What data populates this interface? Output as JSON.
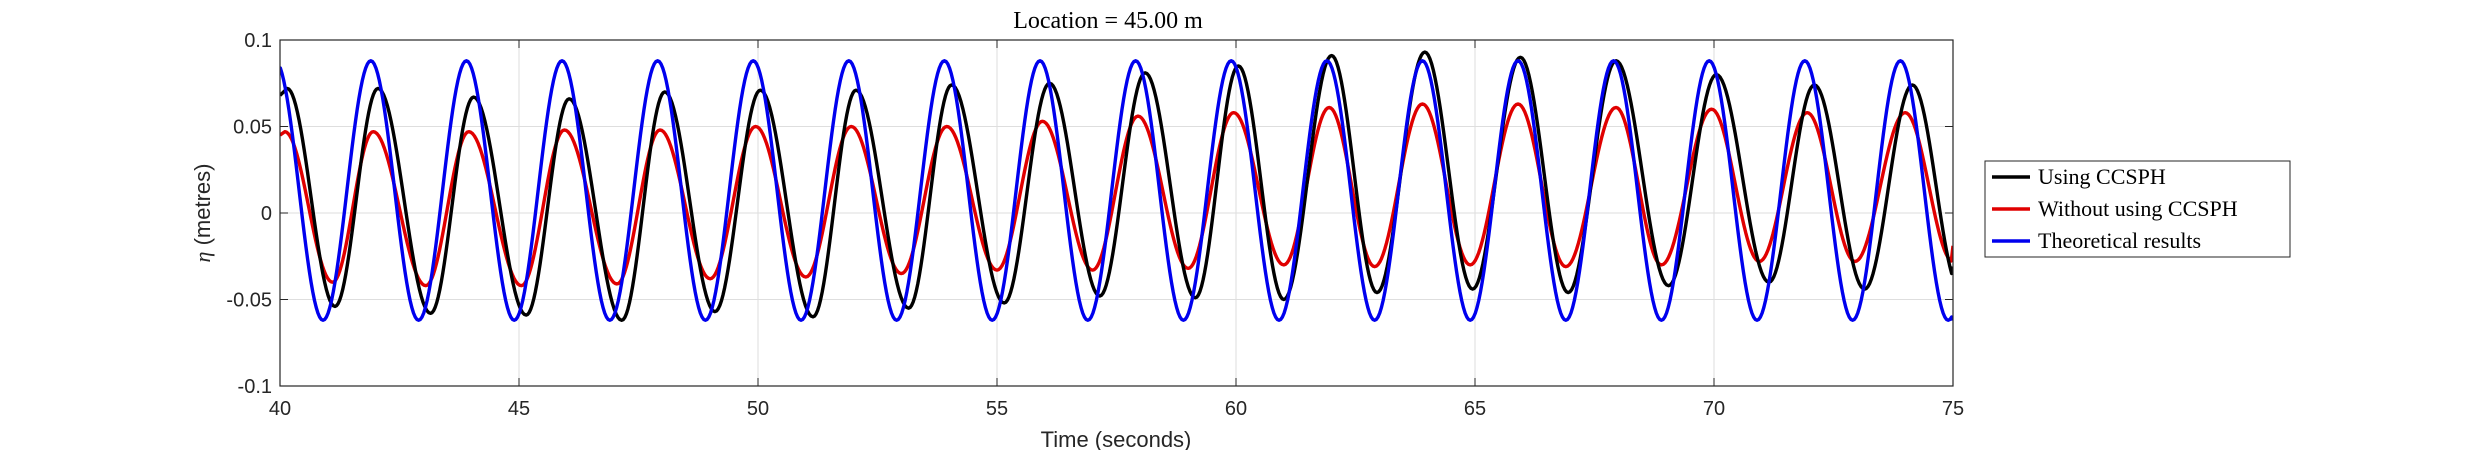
{
  "chart_data": {
    "type": "line",
    "title": "Location = 45.00 m",
    "xlabel": "Time (seconds)",
    "ylabel_symbol": "η",
    "ylabel_rest": " (metres)",
    "xlim": [
      40,
      75
    ],
    "ylim": [
      -0.1,
      0.1
    ],
    "xticks": [
      40,
      45,
      50,
      55,
      60,
      65,
      70,
      75
    ],
    "xtick_labels": [
      "40",
      "45",
      "50",
      "55",
      "60",
      "65",
      "70",
      "75"
    ],
    "yticks": [
      -0.1,
      -0.05,
      0,
      0.05,
      0.1
    ],
    "ytick_labels": [
      "-0.1",
      "-0.05",
      "0",
      "0.05",
      "0.1"
    ],
    "grid": true,
    "legend_position": "right",
    "period": 2.0,
    "series": [
      {
        "name": "Using CCSPH",
        "color": "#000000",
        "start_value": 0.068,
        "crest_times": [
          42.05,
          44.05,
          46.05,
          48.05,
          50.05,
          52.05,
          54.05,
          56.1,
          58.1,
          60.05,
          62.0,
          63.95,
          65.95,
          67.95,
          70.05,
          72.1,
          74.15
        ],
        "crest_values": [
          0.072,
          0.067,
          0.066,
          0.07,
          0.071,
          0.071,
          0.074,
          0.075,
          0.081,
          0.085,
          0.091,
          0.093,
          0.09,
          0.088,
          0.08,
          0.074,
          0.074
        ],
        "trough_times": [
          41.15,
          43.15,
          45.15,
          47.15,
          49.1,
          51.15,
          53.15,
          55.15,
          57.15,
          59.15,
          61.0,
          62.95,
          64.95,
          66.95,
          69.05,
          71.15,
          73.15
        ],
        "trough_values": [
          -0.054,
          -0.058,
          -0.059,
          -0.062,
          -0.057,
          -0.06,
          -0.055,
          -0.052,
          -0.048,
          -0.049,
          -0.05,
          -0.046,
          -0.044,
          -0.046,
          -0.042,
          -0.04,
          -0.044
        ],
        "end_value": -0.031
      },
      {
        "name": "Without using CCSPH",
        "color": "#e00000",
        "start_value": 0.045,
        "crest_times": [
          41.95,
          43.95,
          45.95,
          47.95,
          49.95,
          51.95,
          53.95,
          55.95,
          57.95,
          59.95,
          61.95,
          63.9,
          65.9,
          67.95,
          69.95,
          71.95,
          74.0
        ],
        "crest_values": [
          0.047,
          0.047,
          0.048,
          0.048,
          0.05,
          0.05,
          0.05,
          0.053,
          0.056,
          0.058,
          0.061,
          0.063,
          0.063,
          0.061,
          0.06,
          0.058,
          0.058
        ],
        "trough_times": [
          41.1,
          43.05,
          45.05,
          47.05,
          49.0,
          51.0,
          53.0,
          55.0,
          57.0,
          59.0,
          61.0,
          62.9,
          64.9,
          66.9,
          68.9,
          70.95,
          72.95
        ],
        "trough_values": [
          -0.04,
          -0.042,
          -0.042,
          -0.041,
          -0.038,
          -0.037,
          -0.035,
          -0.033,
          -0.033,
          -0.032,
          -0.03,
          -0.031,
          -0.03,
          -0.031,
          -0.03,
          -0.028,
          -0.028
        ],
        "end_value": -0.019
      },
      {
        "name": "Theoretical results",
        "color": "#0000ee",
        "start_value": 0.083,
        "crest_times": [
          41.9,
          43.9,
          45.9,
          47.9,
          49.9,
          51.9,
          53.9,
          55.9,
          57.9,
          59.9,
          61.9,
          63.9,
          65.9,
          67.9,
          69.9,
          71.9,
          73.9
        ],
        "crest_values": [
          0.088,
          0.088,
          0.088,
          0.088,
          0.088,
          0.088,
          0.088,
          0.088,
          0.088,
          0.088,
          0.088,
          0.088,
          0.088,
          0.088,
          0.088,
          0.088,
          0.088
        ],
        "trough_times": [
          40.9,
          42.9,
          44.9,
          46.9,
          48.9,
          50.9,
          52.9,
          54.9,
          56.9,
          58.9,
          60.9,
          62.9,
          64.9,
          66.9,
          68.9,
          70.9,
          72.9,
          74.9
        ],
        "trough_values": [
          -0.062,
          -0.062,
          -0.062,
          -0.062,
          -0.062,
          -0.062,
          -0.062,
          -0.062,
          -0.062,
          -0.062,
          -0.062,
          -0.062,
          -0.062,
          -0.062,
          -0.062,
          -0.062,
          -0.062,
          -0.062
        ],
        "end_value": -0.062
      }
    ]
  }
}
